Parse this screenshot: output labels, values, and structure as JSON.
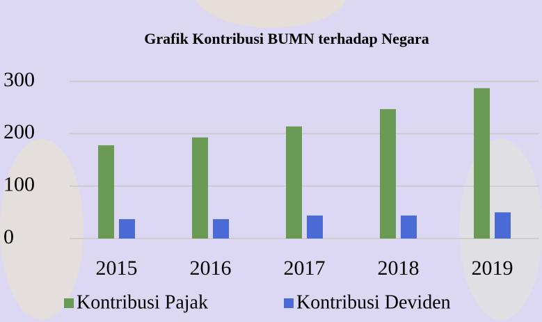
{
  "chart_data": {
    "type": "bar",
    "title": "Grafik Kontribusi BUMN terhadap Negara",
    "categories": [
      "2015",
      "2016",
      "2017",
      "2018",
      "2019"
    ],
    "series": [
      {
        "name": "Kontribusi Pajak",
        "color": "#6b9a55",
        "values": [
          178,
          193,
          214,
          247,
          287
        ]
      },
      {
        "name": "Kontribusi Deviden",
        "color": "#4a6ad6",
        "values": [
          37,
          37,
          44,
          44,
          50
        ]
      }
    ],
    "ylim": [
      0,
      300
    ],
    "yticks": [
      0,
      100,
      200,
      300
    ],
    "grid": true,
    "legend": "bottom"
  }
}
